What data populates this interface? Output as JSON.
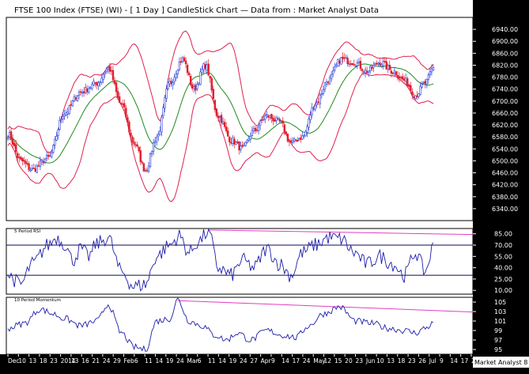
{
  "header": {
    "title": "FTSE 100 Index (FTSE) (WI) -  [ 1 Day ] CandleStick Chart — Data from : Market Analyst Data"
  },
  "watermark": "Market Analyst 8",
  "colors": {
    "up": "#2b3fd8",
    "down": "#e01f2f",
    "band": "#e0204f",
    "ma": "#1f8a1f",
    "line": "#1e1eaa",
    "trend": "#e040c0",
    "axis_bg": "#000000",
    "axis_text": "#ffffff"
  },
  "chart_data": [
    {
      "type": "candlestick",
      "title": "FTSE 100 Index (FTSE) (WI) -  [ 1 Day ] CandleStick Chart — Data from : Market Analyst Data",
      "ylim": [
        6300,
        6980
      ],
      "y_ticks": [
        6340,
        6380,
        6420,
        6460,
        6500,
        6540,
        6580,
        6620,
        6660,
        6700,
        6740,
        6780,
        6820,
        6860,
        6900,
        6940
      ],
      "overlays": [
        "Bollinger bands (upper/lower)",
        "moving average"
      ],
      "grid": false,
      "close_anchors": [
        {
          "x": 0,
          "close": 6590
        },
        {
          "x": 8,
          "close": 6500
        },
        {
          "x": 15,
          "close": 6470
        },
        {
          "x": 25,
          "close": 6510
        },
        {
          "x": 35,
          "close": 6660
        },
        {
          "x": 45,
          "close": 6730
        },
        {
          "x": 55,
          "close": 6760
        },
        {
          "x": 62,
          "close": 6810
        },
        {
          "x": 70,
          "close": 6690
        },
        {
          "x": 78,
          "close": 6560
        },
        {
          "x": 85,
          "close": 6470
        },
        {
          "x": 92,
          "close": 6580
        },
        {
          "x": 100,
          "close": 6760
        },
        {
          "x": 108,
          "close": 6840
        },
        {
          "x": 115,
          "close": 6740
        },
        {
          "x": 122,
          "close": 6820
        },
        {
          "x": 130,
          "close": 6650
        },
        {
          "x": 138,
          "close": 6570
        },
        {
          "x": 145,
          "close": 6540
        },
        {
          "x": 152,
          "close": 6600
        },
        {
          "x": 160,
          "close": 6650
        },
        {
          "x": 168,
          "close": 6630
        },
        {
          "x": 175,
          "close": 6560
        },
        {
          "x": 182,
          "close": 6580
        },
        {
          "x": 190,
          "close": 6690
        },
        {
          "x": 198,
          "close": 6770
        },
        {
          "x": 206,
          "close": 6840
        },
        {
          "x": 214,
          "close": 6830
        },
        {
          "x": 222,
          "close": 6800
        },
        {
          "x": 230,
          "close": 6830
        },
        {
          "x": 238,
          "close": 6800
        },
        {
          "x": 245,
          "close": 6770
        },
        {
          "x": 252,
          "close": 6720
        },
        {
          "x": 258,
          "close": 6760
        },
        {
          "x": 263,
          "close": 6810
        }
      ]
    },
    {
      "type": "line",
      "title": "5 Period RSI",
      "ylim": [
        5,
        92
      ],
      "y_ticks": [
        10,
        25,
        40,
        55,
        70,
        85
      ],
      "reference_lines": [
        70,
        30
      ],
      "anchors": [
        {
          "x": 0,
          "y": 30
        },
        {
          "x": 8,
          "y": 18
        },
        {
          "x": 15,
          "y": 45
        },
        {
          "x": 25,
          "y": 70
        },
        {
          "x": 30,
          "y": 80
        },
        {
          "x": 35,
          "y": 72
        },
        {
          "x": 40,
          "y": 50
        },
        {
          "x": 45,
          "y": 65
        },
        {
          "x": 50,
          "y": 55
        },
        {
          "x": 55,
          "y": 72
        },
        {
          "x": 62,
          "y": 80
        },
        {
          "x": 70,
          "y": 35
        },
        {
          "x": 78,
          "y": 15
        },
        {
          "x": 85,
          "y": 18
        },
        {
          "x": 92,
          "y": 55
        },
        {
          "x": 100,
          "y": 70
        },
        {
          "x": 106,
          "y": 82
        },
        {
          "x": 112,
          "y": 60
        },
        {
          "x": 118,
          "y": 75
        },
        {
          "x": 124,
          "y": 88
        },
        {
          "x": 130,
          "y": 40
        },
        {
          "x": 138,
          "y": 30
        },
        {
          "x": 145,
          "y": 50
        },
        {
          "x": 152,
          "y": 40
        },
        {
          "x": 160,
          "y": 65
        },
        {
          "x": 168,
          "y": 45
        },
        {
          "x": 175,
          "y": 30
        },
        {
          "x": 182,
          "y": 60
        },
        {
          "x": 190,
          "y": 70
        },
        {
          "x": 198,
          "y": 80
        },
        {
          "x": 206,
          "y": 78
        },
        {
          "x": 214,
          "y": 60
        },
        {
          "x": 222,
          "y": 45
        },
        {
          "x": 230,
          "y": 55
        },
        {
          "x": 238,
          "y": 45
        },
        {
          "x": 245,
          "y": 30
        },
        {
          "x": 252,
          "y": 60
        },
        {
          "x": 258,
          "y": 35
        },
        {
          "x": 263,
          "y": 68
        }
      ]
    },
    {
      "type": "line",
      "title": "10 Period Momentum",
      "ylim": [
        94,
        106
      ],
      "y_ticks": [
        95,
        97,
        99,
        101,
        103,
        105
      ],
      "anchors": [
        {
          "x": 0,
          "y": 99.5
        },
        {
          "x": 10,
          "y": 100.5
        },
        {
          "x": 20,
          "y": 103.5
        },
        {
          "x": 28,
          "y": 102.5
        },
        {
          "x": 35,
          "y": 101.5
        },
        {
          "x": 45,
          "y": 100
        },
        {
          "x": 55,
          "y": 101
        },
        {
          "x": 62,
          "y": 104.5
        },
        {
          "x": 70,
          "y": 98.5
        },
        {
          "x": 78,
          "y": 95.5
        },
        {
          "x": 85,
          "y": 95
        },
        {
          "x": 92,
          "y": 101
        },
        {
          "x": 100,
          "y": 101.5
        },
        {
          "x": 105,
          "y": 105.5
        },
        {
          "x": 112,
          "y": 101
        },
        {
          "x": 120,
          "y": 100
        },
        {
          "x": 128,
          "y": 98
        },
        {
          "x": 135,
          "y": 97
        },
        {
          "x": 142,
          "y": 98.5
        },
        {
          "x": 150,
          "y": 97
        },
        {
          "x": 160,
          "y": 99
        },
        {
          "x": 170,
          "y": 98
        },
        {
          "x": 178,
          "y": 97.5
        },
        {
          "x": 186,
          "y": 100
        },
        {
          "x": 195,
          "y": 102.5
        },
        {
          "x": 205,
          "y": 104
        },
        {
          "x": 215,
          "y": 101
        },
        {
          "x": 225,
          "y": 100.5
        },
        {
          "x": 235,
          "y": 99.5
        },
        {
          "x": 245,
          "y": 99
        },
        {
          "x": 252,
          "y": 98.5
        },
        {
          "x": 258,
          "y": 99.5
        },
        {
          "x": 263,
          "y": 100.5
        }
      ]
    }
  ],
  "x_axis": {
    "labels": [
      "Dec",
      "10",
      "13",
      "18",
      "23",
      "2014",
      "13",
      "16",
      "21",
      "24",
      "29",
      "Feb",
      "6",
      "11",
      "14",
      "19",
      "24",
      "Mar",
      "6",
      "11",
      "14",
      "19",
      "24",
      "27",
      "Apr",
      "9",
      "14",
      "17",
      "24",
      "May",
      "12",
      "15",
      "20",
      "23",
      "Jun",
      "10",
      "13",
      "18",
      "23",
      "26",
      "Jul",
      "9",
      "14",
      "17",
      "2"
    ]
  }
}
